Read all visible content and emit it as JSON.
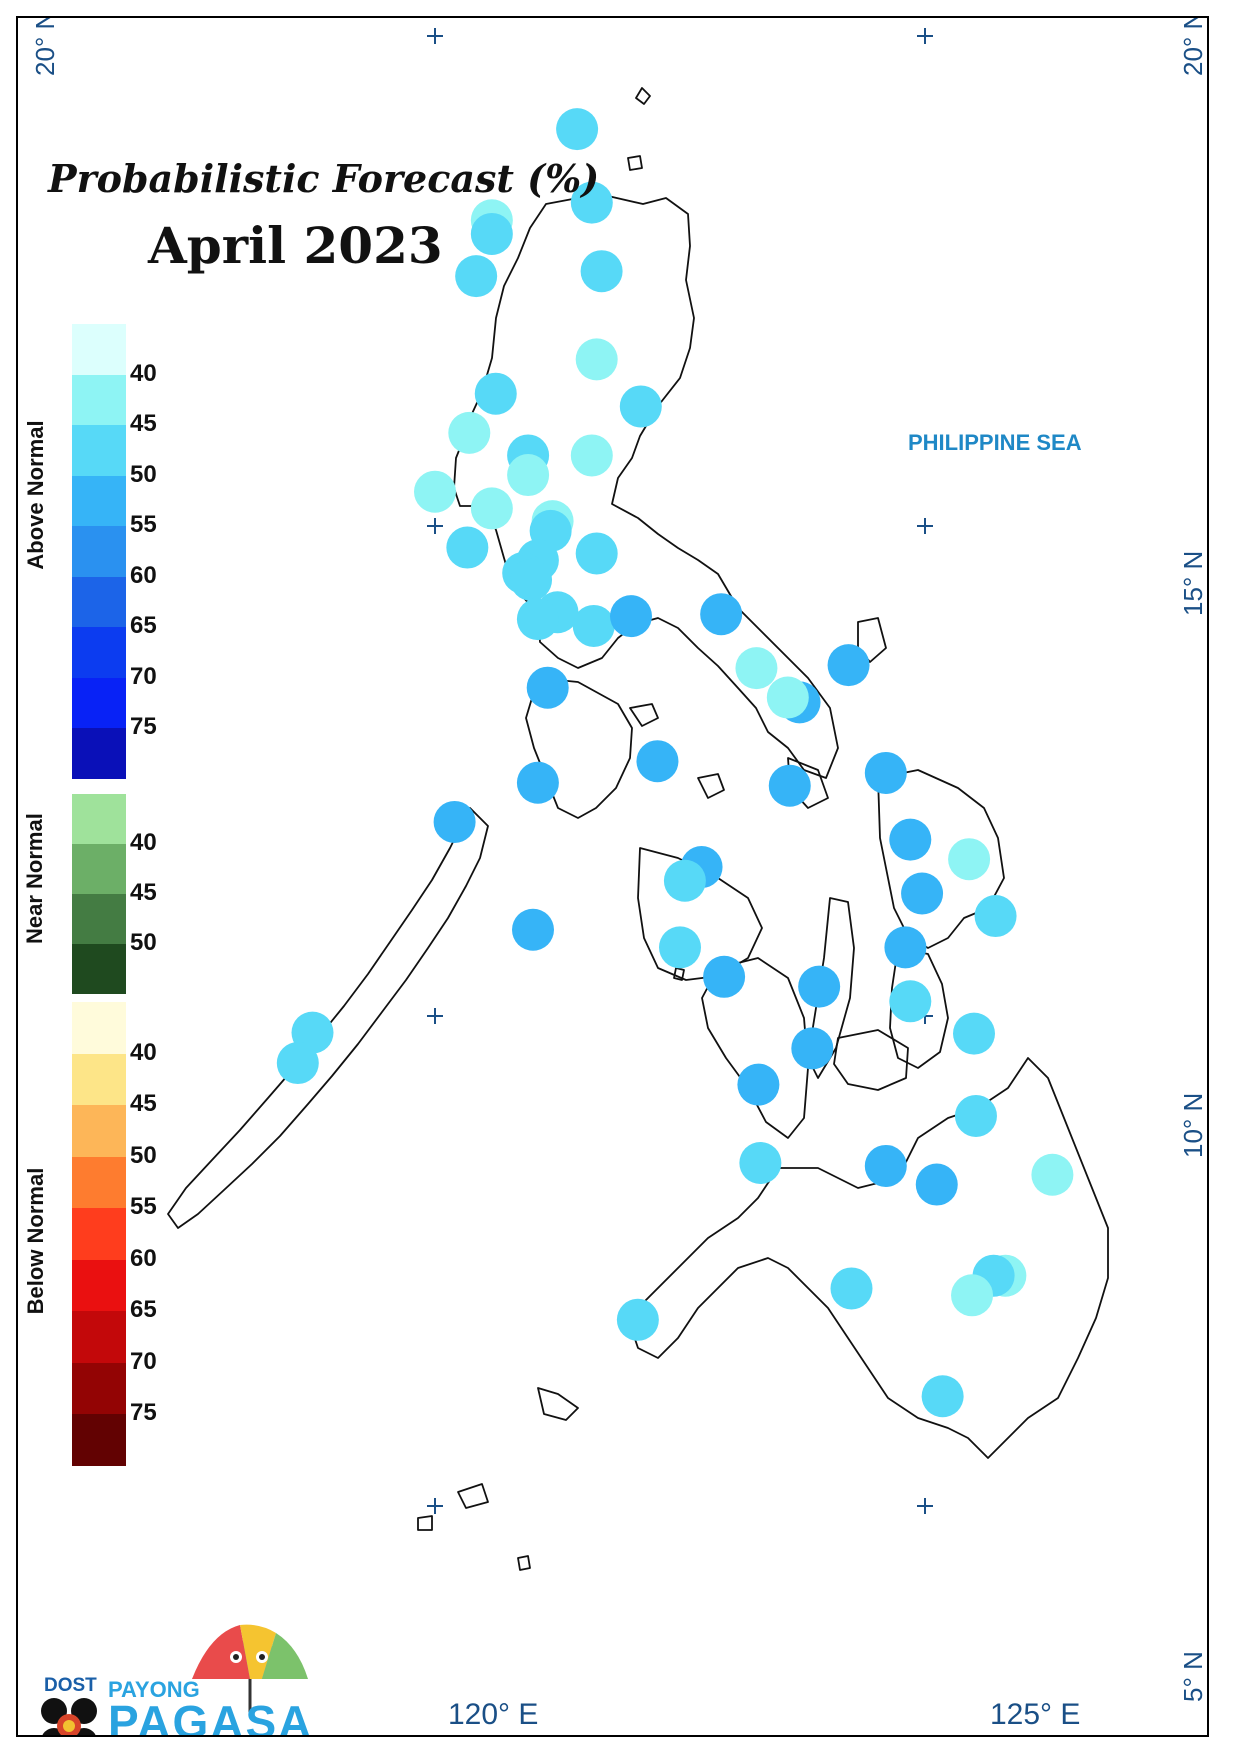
{
  "title": "Probabilistic Forecast (%)",
  "subtitle": "April 2023",
  "sea_label": "PHILIPPINE SEA",
  "lat_labels": {
    "n20": "20° N",
    "n15": "15° N",
    "n10": "10° N",
    "n5": "5° N"
  },
  "lon_labels": {
    "e120": "120° E",
    "e125": "125° E"
  },
  "legend": {
    "above_normal": {
      "label": "Above Normal",
      "colors": [
        "#dcfffd",
        "#8ef4f4",
        "#57d9f7",
        "#36b4f7",
        "#2a91f0",
        "#1c64e8",
        "#0c3cf0",
        "#0822f6",
        "#0a10b8"
      ],
      "ticks": [
        "40",
        "45",
        "50",
        "55",
        "60",
        "65",
        "70",
        "75"
      ]
    },
    "near_normal": {
      "label": "Near Normal",
      "colors": [
        "#9fe29b",
        "#6caf67",
        "#447c43",
        "#1f4a1f"
      ],
      "ticks": [
        "40",
        "45",
        "50"
      ]
    },
    "below_normal": {
      "label": "Below Normal",
      "colors": [
        "#fffbdb",
        "#fde588",
        "#fdb658",
        "#fe7c2f",
        "#ff3d1d",
        "#ea1010",
        "#c3080a",
        "#930404",
        "#620202"
      ],
      "ticks": [
        "40",
        "45",
        "50",
        "55",
        "60",
        "65",
        "70",
        "75"
      ]
    }
  },
  "stations": [
    {
      "lat": 19.05,
      "lon": 121.45,
      "color": "#57d9f7"
    },
    {
      "lat": 18.3,
      "lon": 121.6,
      "color": "#57d9f7"
    },
    {
      "lat": 18.12,
      "lon": 120.58,
      "color": "#8ef4f4"
    },
    {
      "lat": 17.98,
      "lon": 120.58,
      "color": "#57d9f7"
    },
    {
      "lat": 17.55,
      "lon": 120.42,
      "color": "#57d9f7"
    },
    {
      "lat": 17.6,
      "lon": 121.7,
      "color": "#57d9f7"
    },
    {
      "lat": 16.7,
      "lon": 121.65,
      "color": "#8ef4f4"
    },
    {
      "lat": 16.35,
      "lon": 120.62,
      "color": "#57d9f7"
    },
    {
      "lat": 16.22,
      "lon": 122.1,
      "color": "#57d9f7"
    },
    {
      "lat": 15.95,
      "lon": 120.35,
      "color": "#8ef4f4"
    },
    {
      "lat": 15.72,
      "lon": 120.95,
      "color": "#57d9f7"
    },
    {
      "lat": 15.72,
      "lon": 121.6,
      "color": "#8ef4f4"
    },
    {
      "lat": 15.52,
      "lon": 120.95,
      "color": "#8ef4f4"
    },
    {
      "lat": 15.35,
      "lon": 120.0,
      "color": "#8ef4f4"
    },
    {
      "lat": 15.18,
      "lon": 120.58,
      "color": "#8ef4f4"
    },
    {
      "lat": 15.05,
      "lon": 121.2,
      "color": "#8ef4f4"
    },
    {
      "lat": 14.95,
      "lon": 121.18,
      "color": "#57d9f7"
    },
    {
      "lat": 14.78,
      "lon": 120.33,
      "color": "#57d9f7"
    },
    {
      "lat": 14.72,
      "lon": 121.65,
      "color": "#57d9f7"
    },
    {
      "lat": 14.65,
      "lon": 121.05,
      "color": "#57d9f7"
    },
    {
      "lat": 14.52,
      "lon": 120.9,
      "color": "#57d9f7"
    },
    {
      "lat": 14.45,
      "lon": 120.98,
      "color": "#57d9f7"
    },
    {
      "lat": 14.12,
      "lon": 121.25,
      "color": "#57d9f7"
    },
    {
      "lat": 14.05,
      "lon": 121.05,
      "color": "#57d9f7"
    },
    {
      "lat": 13.98,
      "lon": 121.62,
      "color": "#57d9f7"
    },
    {
      "lat": 14.08,
      "lon": 122.0,
      "color": "#36b4f7"
    },
    {
      "lat": 14.1,
      "lon": 122.92,
      "color": "#36b4f7"
    },
    {
      "lat": 13.58,
      "lon": 124.22,
      "color": "#36b4f7"
    },
    {
      "lat": 13.55,
      "lon": 123.28,
      "color": "#8ef4f4"
    },
    {
      "lat": 13.2,
      "lon": 123.72,
      "color": "#36b4f7"
    },
    {
      "lat": 13.25,
      "lon": 123.6,
      "color": "#8ef4f4"
    },
    {
      "lat": 13.35,
      "lon": 121.15,
      "color": "#36b4f7"
    },
    {
      "lat": 12.6,
      "lon": 122.27,
      "color": "#36b4f7"
    },
    {
      "lat": 12.35,
      "lon": 123.62,
      "color": "#36b4f7"
    },
    {
      "lat": 12.48,
      "lon": 124.6,
      "color": "#36b4f7"
    },
    {
      "lat": 12.38,
      "lon": 121.05,
      "color": "#36b4f7"
    },
    {
      "lat": 11.98,
      "lon": 120.2,
      "color": "#36b4f7"
    },
    {
      "lat": 11.8,
      "lon": 124.85,
      "color": "#36b4f7"
    },
    {
      "lat": 11.6,
      "lon": 125.45,
      "color": "#8ef4f4"
    },
    {
      "lat": 11.52,
      "lon": 122.72,
      "color": "#36b4f7"
    },
    {
      "lat": 11.38,
      "lon": 122.55,
      "color": "#57d9f7"
    },
    {
      "lat": 11.25,
      "lon": 124.97,
      "color": "#36b4f7"
    },
    {
      "lat": 11.02,
      "lon": 125.72,
      "color": "#57d9f7"
    },
    {
      "lat": 10.88,
      "lon": 121.0,
      "color": "#36b4f7"
    },
    {
      "lat": 10.7,
      "lon": 122.5,
      "color": "#57d9f7"
    },
    {
      "lat": 10.7,
      "lon": 124.8,
      "color": "#36b4f7"
    },
    {
      "lat": 10.4,
      "lon": 122.95,
      "color": "#36b4f7"
    },
    {
      "lat": 10.3,
      "lon": 123.92,
      "color": "#36b4f7"
    },
    {
      "lat": 10.15,
      "lon": 124.85,
      "color": "#57d9f7"
    },
    {
      "lat": 9.83,
      "lon": 118.75,
      "color": "#57d9f7"
    },
    {
      "lat": 9.82,
      "lon": 125.5,
      "color": "#57d9f7"
    },
    {
      "lat": 9.67,
      "lon": 123.85,
      "color": "#36b4f7"
    },
    {
      "lat": 9.52,
      "lon": 118.6,
      "color": "#57d9f7"
    },
    {
      "lat": 9.3,
      "lon": 123.3,
      "color": "#36b4f7"
    },
    {
      "lat": 8.98,
      "lon": 125.52,
      "color": "#57d9f7"
    },
    {
      "lat": 8.5,
      "lon": 123.32,
      "color": "#57d9f7"
    },
    {
      "lat": 8.47,
      "lon": 124.6,
      "color": "#36b4f7"
    },
    {
      "lat": 8.38,
      "lon": 126.3,
      "color": "#8ef4f4"
    },
    {
      "lat": 8.28,
      "lon": 125.12,
      "color": "#36b4f7"
    },
    {
      "lat": 7.35,
      "lon": 125.82,
      "color": "#8ef4f4"
    },
    {
      "lat": 7.35,
      "lon": 125.7,
      "color": "#57d9f7"
    },
    {
      "lat": 7.15,
      "lon": 125.48,
      "color": "#8ef4f4"
    },
    {
      "lat": 7.22,
      "lon": 124.25,
      "color": "#57d9f7"
    },
    {
      "lat": 6.9,
      "lon": 122.07,
      "color": "#57d9f7"
    },
    {
      "lat": 6.12,
      "lon": 125.18,
      "color": "#57d9f7"
    }
  ]
}
